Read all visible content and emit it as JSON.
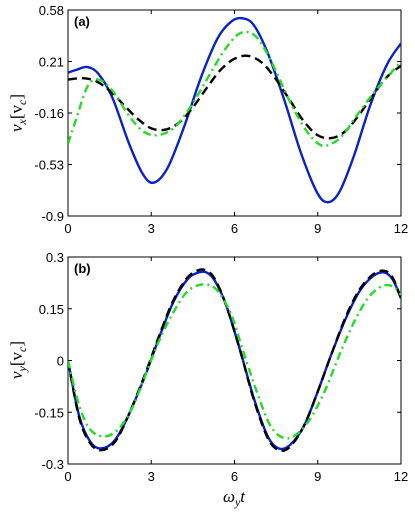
{
  "chart_data": [
    {
      "type": "line",
      "panel_label": "(a)",
      "ylabel": "v_x[v_c]",
      "xlabel": "",
      "xlim": [
        0,
        12
      ],
      "ylim": [
        -0.9,
        0.58
      ],
      "xticks": [
        0,
        3,
        6,
        9,
        12
      ],
      "yticks": [
        0.58,
        0.21,
        -0.16,
        -0.53,
        -0.9
      ],
      "xtick_labels": [
        "0",
        "3",
        "6",
        "9",
        "12"
      ],
      "ytick_labels": [
        "0.58",
        "0.21",
        "-0.16",
        "-0.53",
        "-0.9"
      ],
      "grid": false,
      "series": [
        {
          "color": "#0a1fd0",
          "style": "solid",
          "x": [
            0,
            0.3,
            0.7,
            1.1,
            1.6,
            2.2,
            2.7,
            3.1,
            3.6,
            4.2,
            4.8,
            5.4,
            5.9,
            6.3,
            6.7,
            7.2,
            7.8,
            8.4,
            9.0,
            9.4,
            9.8,
            10.3,
            10.9,
            11.5,
            12
          ],
          "y": [
            0.13,
            0.15,
            0.17,
            0.12,
            -0.05,
            -0.38,
            -0.6,
            -0.66,
            -0.55,
            -0.25,
            0.1,
            0.38,
            0.5,
            0.52,
            0.47,
            0.27,
            -0.07,
            -0.45,
            -0.74,
            -0.8,
            -0.72,
            -0.47,
            -0.1,
            0.19,
            0.34
          ]
        },
        {
          "color": "#000000",
          "style": "dashed",
          "x": [
            0,
            0.5,
            1.0,
            1.5,
            2.0,
            2.5,
            3.0,
            3.5,
            4.0,
            4.5,
            5.0,
            5.5,
            6.0,
            6.5,
            7.0,
            7.5,
            8.0,
            8.5,
            9.0,
            9.5,
            10.0,
            10.5,
            11.0,
            11.5,
            12
          ],
          "y": [
            0.08,
            0.09,
            0.07,
            0.0,
            -0.1,
            -0.2,
            -0.27,
            -0.28,
            -0.23,
            -0.12,
            0.02,
            0.15,
            0.23,
            0.25,
            0.2,
            0.08,
            -0.07,
            -0.22,
            -0.32,
            -0.34,
            -0.29,
            -0.17,
            -0.03,
            0.1,
            0.18
          ]
        },
        {
          "color": "#22dd22",
          "style": "dashdot",
          "x": [
            0,
            0.3,
            0.7,
            1.1,
            1.6,
            2.2,
            2.7,
            3.2,
            3.8,
            4.4,
            5.0,
            5.6,
            6.1,
            6.5,
            6.9,
            7.4,
            8.0,
            8.6,
            9.1,
            9.5,
            9.9,
            10.4,
            11.0,
            11.6,
            12
          ],
          "y": [
            -0.38,
            -0.2,
            0.03,
            0.08,
            0.0,
            -0.18,
            -0.29,
            -0.32,
            -0.27,
            -0.12,
            0.08,
            0.28,
            0.4,
            0.42,
            0.36,
            0.18,
            -0.08,
            -0.29,
            -0.39,
            -0.38,
            -0.32,
            -0.18,
            -0.02,
            0.12,
            0.21
          ]
        }
      ]
    },
    {
      "type": "line",
      "panel_label": "(b)",
      "ylabel": "v_y[v_c]",
      "xlabel": "ω_y t",
      "xlim": [
        0,
        12
      ],
      "ylim": [
        -0.3,
        0.3
      ],
      "xticks": [
        0,
        3,
        6,
        9,
        12
      ],
      "yticks": [
        0.3,
        0.15,
        0,
        -0.15,
        -0.3
      ],
      "xtick_labels": [
        "0",
        "3",
        "6",
        "9",
        "12"
      ],
      "ytick_labels": [
        "0.3",
        "0.15",
        "0",
        "-0.15",
        "-0.3"
      ],
      "grid": false,
      "series": [
        {
          "color": "#0a1fd0",
          "style": "solid",
          "x": [
            0,
            0.4,
            0.8,
            1.2,
            1.7,
            2.2,
            2.8,
            3.3,
            3.8,
            4.3,
            4.7,
            5.0,
            5.3,
            5.7,
            6.2,
            6.7,
            7.2,
            7.6,
            8.0,
            8.5,
            9.0,
            9.5,
            10.0,
            10.5,
            11.0,
            11.4,
            11.7,
            12
          ],
          "y": [
            0,
            -0.16,
            -0.235,
            -0.255,
            -0.23,
            -0.155,
            -0.04,
            0.07,
            0.17,
            0.235,
            0.255,
            0.255,
            0.23,
            0.16,
            0.03,
            -0.11,
            -0.22,
            -0.255,
            -0.245,
            -0.19,
            -0.09,
            0.02,
            0.12,
            0.2,
            0.245,
            0.255,
            0.235,
            0.18
          ]
        },
        {
          "color": "#000000",
          "style": "dashed",
          "x": [
            0,
            0.4,
            0.8,
            1.2,
            1.7,
            2.2,
            2.8,
            3.3,
            3.8,
            4.3,
            4.7,
            5.0,
            5.3,
            5.7,
            6.2,
            6.7,
            7.2,
            7.6,
            8.0,
            8.5,
            9.0,
            9.5,
            10.0,
            10.5,
            11.0,
            11.4,
            11.7,
            12
          ],
          "y": [
            0,
            -0.165,
            -0.24,
            -0.26,
            -0.235,
            -0.155,
            -0.035,
            0.075,
            0.175,
            0.24,
            0.262,
            0.26,
            0.235,
            0.16,
            0.03,
            -0.115,
            -0.225,
            -0.26,
            -0.25,
            -0.19,
            -0.09,
            0.02,
            0.125,
            0.205,
            0.25,
            0.26,
            0.24,
            0.18
          ]
        },
        {
          "color": "#22dd22",
          "style": "dashdot",
          "x": [
            0,
            0.4,
            0.8,
            1.3,
            1.8,
            2.3,
            2.8,
            3.3,
            3.8,
            4.3,
            4.8,
            5.2,
            5.5,
            5.9,
            6.3,
            6.8,
            7.3,
            7.8,
            8.3,
            8.8,
            9.3,
            9.8,
            10.3,
            10.8,
            11.3,
            11.7,
            12
          ],
          "y": [
            0,
            -0.13,
            -0.2,
            -0.22,
            -0.2,
            -0.14,
            -0.04,
            0.06,
            0.14,
            0.2,
            0.22,
            0.215,
            0.19,
            0.13,
            0.03,
            -0.09,
            -0.19,
            -0.225,
            -0.21,
            -0.16,
            -0.08,
            0.02,
            0.11,
            0.18,
            0.215,
            0.215,
            0.19
          ]
        }
      ]
    }
  ]
}
